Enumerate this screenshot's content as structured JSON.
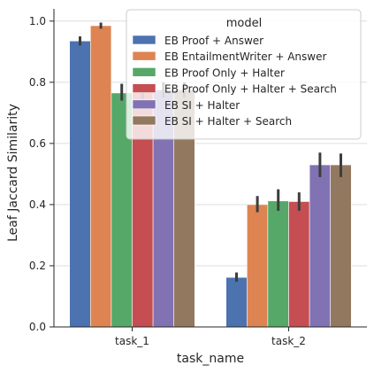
{
  "chart_data": {
    "type": "bar",
    "xlabel": "task_name",
    "ylabel": "Leaf Jaccard Similarity",
    "ylim": [
      0,
      1.04
    ],
    "yticks": [
      0.0,
      0.2,
      0.4,
      0.6,
      0.8,
      1.0
    ],
    "ytick_labels": [
      "0.0",
      "0.2",
      "0.4",
      "0.6",
      "0.8",
      "1.0"
    ],
    "grid": true,
    "categories": [
      "task_1",
      "task_2"
    ],
    "legend": {
      "title": "model",
      "placement": "top-right"
    },
    "series": [
      {
        "name": "EB Proof + Answer",
        "color": "#4c72b0",
        "values": [
          0.935,
          0.162
        ],
        "err_low": [
          0.92,
          0.148
        ],
        "err_high": [
          0.95,
          0.178
        ]
      },
      {
        "name": "EB EntailmentWriter + Answer",
        "color": "#dd8452",
        "values": [
          0.985,
          0.4
        ],
        "err_low": [
          0.975,
          0.375
        ],
        "err_high": [
          0.995,
          0.428
        ]
      },
      {
        "name": "EB Proof Only + Halter",
        "color": "#55a868",
        "values": [
          0.765,
          0.412
        ],
        "err_low": [
          0.74,
          0.38
        ],
        "err_high": [
          0.795,
          0.45
        ]
      },
      {
        "name": "EB Proof Only + Halter + Search",
        "color": "#c44e52",
        "values": [
          0.77,
          0.41
        ],
        "err_low": [
          0.745,
          0.38
        ],
        "err_high": [
          0.795,
          0.44
        ]
      },
      {
        "name": "EB SI + Halter",
        "color": "#8172b3",
        "values": [
          0.775,
          0.53
        ],
        "err_low": [
          0.75,
          0.49
        ],
        "err_high": [
          0.8,
          0.57
        ]
      },
      {
        "name": "EB SI + Halter + Search",
        "color": "#937860",
        "values": [
          0.775,
          0.53
        ],
        "err_low": [
          0.75,
          0.49
        ],
        "err_high": [
          0.8,
          0.567
        ]
      }
    ]
  }
}
